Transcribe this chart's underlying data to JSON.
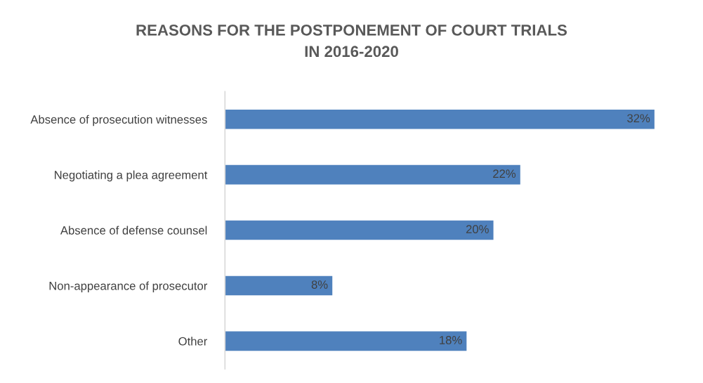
{
  "chart_data": {
    "type": "bar",
    "orientation": "horizontal",
    "title": "REASONS FOR THE POSTPONEMENT OF COURT TRIALS\nIN 2016-2020",
    "categories": [
      "Absence of prosecution witnesses",
      "Negotiating a plea agreement",
      "Absence of defense counsel",
      "Non-appearance of prosecutor",
      "Other"
    ],
    "values": [
      32,
      22,
      20,
      8,
      18
    ],
    "value_labels": [
      "32%",
      "22%",
      "20%",
      "8%",
      "18%"
    ],
    "color": "#4f81bd",
    "grid": false,
    "legend": false
  }
}
